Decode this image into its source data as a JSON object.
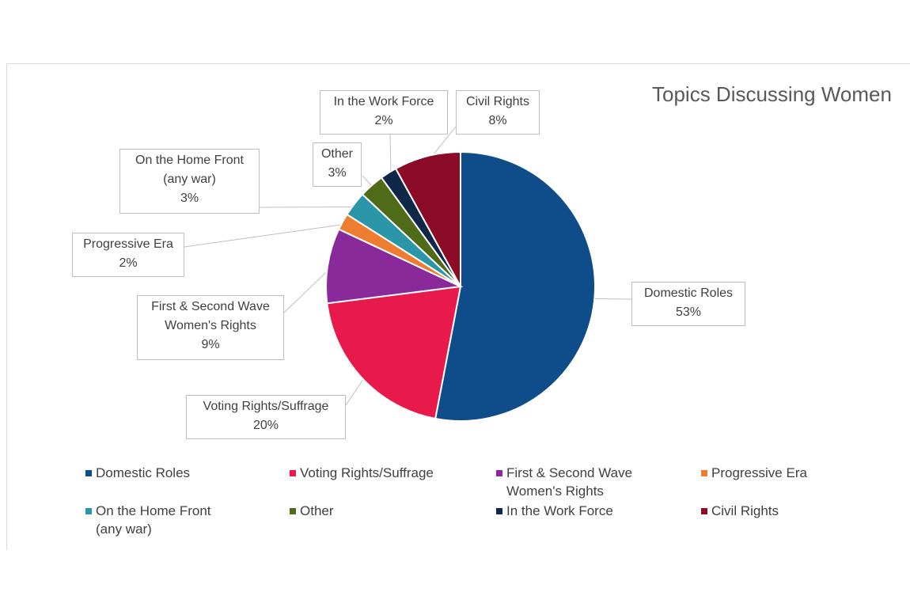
{
  "chart_data": {
    "type": "pie",
    "title": "Topics Discussing Women",
    "slices": [
      {
        "label": "Domestic Roles",
        "value": 53,
        "pct_label": "53%",
        "color": "#0f4c8a"
      },
      {
        "label": "Voting Rights/Suffrage",
        "value": 20,
        "pct_label": "20%",
        "color": "#e8194b"
      },
      {
        "label": "First & Second Wave\nWomen's Rights",
        "value": 9,
        "pct_label": "9%",
        "color": "#8a2a9a"
      },
      {
        "label": "Progressive Era",
        "value": 2,
        "pct_label": "2%",
        "color": "#ed7d31"
      },
      {
        "label": "On the Home Front\n(any war)",
        "value": 3,
        "pct_label": "3%",
        "color": "#2a96a8"
      },
      {
        "label": "Other",
        "value": 3,
        "pct_label": "3%",
        "color": "#4f6b17"
      },
      {
        "label": "In the Work Force",
        "value": 2,
        "pct_label": "2%",
        "color": "#0f2748"
      },
      {
        "label": "Civil Rights",
        "value": 8,
        "pct_label": "8%",
        "color": "#8b0b27"
      }
    ],
    "legend_position": "bottom"
  }
}
